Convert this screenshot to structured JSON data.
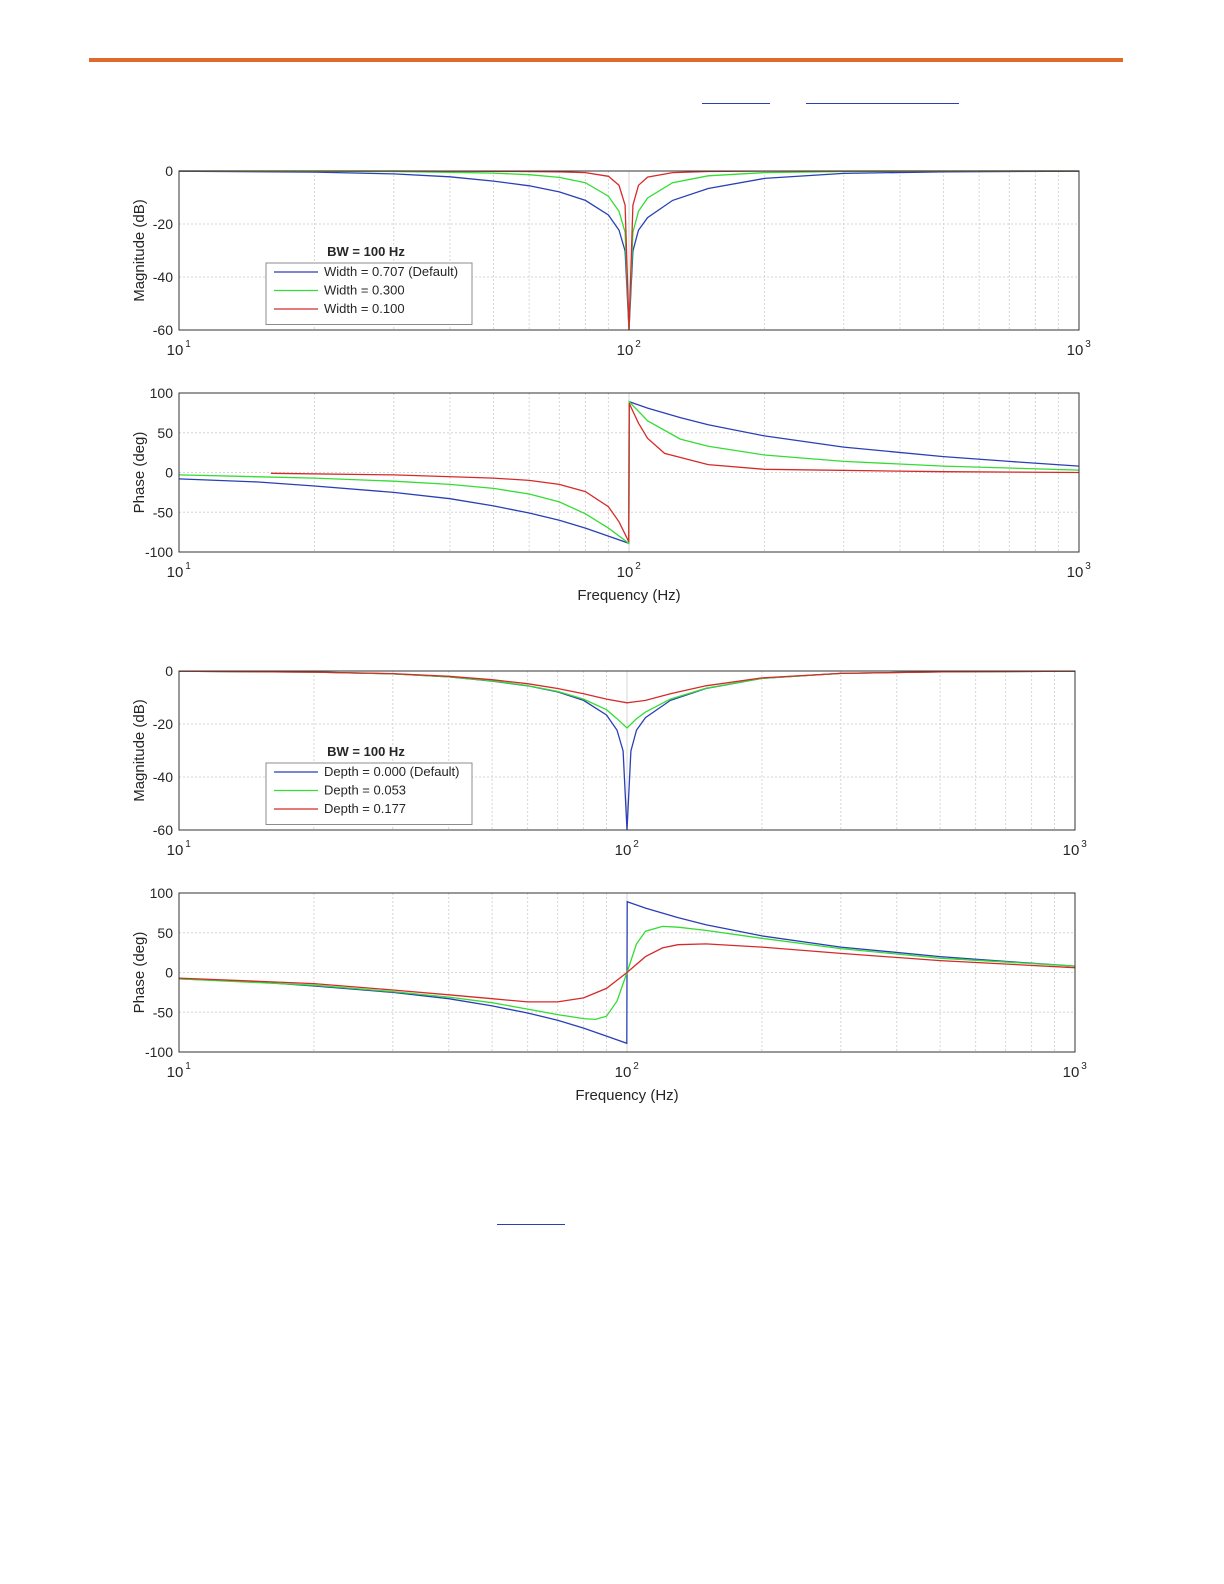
{
  "colors": {
    "accent": "#e06a2c",
    "blue": "#2a3fb6",
    "green": "#33dd33",
    "red": "#d62a2a"
  },
  "chart_data": [
    {
      "type": "line",
      "subplot": "magnitude",
      "ylabel": "Magnitude (dB)",
      "xlabel": "",
      "xscale": "log",
      "xlim": [
        10,
        1000
      ],
      "ylim": [
        -60,
        0
      ],
      "yticks": [
        "0",
        "-20",
        "-40",
        "-60"
      ],
      "grid": true,
      "legend_title": "BW = 100 Hz",
      "legend_placement": "lower-left",
      "series": [
        {
          "name": "Width = 0.707  (Default)",
          "color": "blue",
          "x": [
            10,
            20,
            30,
            40,
            50,
            60,
            70,
            80,
            90,
            95,
            98,
            100,
            102,
            105,
            110,
            125,
            150,
            200,
            300,
            500,
            1000
          ],
          "y": [
            -0.09,
            -0.4,
            -1.1,
            -2.2,
            -3.8,
            -5.6,
            -7.9,
            -11.1,
            -16.6,
            -22.3,
            -30.2,
            -60,
            -30.2,
            -22.3,
            -17.6,
            -11.1,
            -6.6,
            -2.8,
            -0.9,
            -0.3,
            -0.09
          ]
        },
        {
          "name": "Width = 0.300",
          "color": "green",
          "x": [
            10,
            20,
            30,
            40,
            50,
            60,
            70,
            80,
            90,
            95,
            98,
            100,
            102,
            105,
            110,
            125,
            150,
            200,
            300,
            500,
            1000
          ],
          "y": [
            0,
            -0.1,
            -0.2,
            -0.5,
            -0.8,
            -1.4,
            -2.4,
            -4.4,
            -9.5,
            -15.2,
            -23.1,
            -60,
            -23.1,
            -15.2,
            -10.2,
            -4.4,
            -1.8,
            -0.6,
            -0.2,
            -0.05,
            0
          ]
        },
        {
          "name": "Width = 0.100",
          "color": "red",
          "x": [
            10,
            30,
            50,
            70,
            80,
            90,
            95,
            98,
            100,
            102,
            105,
            110,
            125,
            150,
            200,
            500,
            1000
          ],
          "y": [
            0,
            0,
            -0.1,
            -0.3,
            -0.6,
            -2,
            -5.4,
            -12.9,
            -60,
            -12.9,
            -5.4,
            -2.3,
            -0.6,
            -0.2,
            -0.05,
            0,
            0
          ]
        }
      ]
    },
    {
      "type": "line",
      "subplot": "phase",
      "ylabel": "Phase (deg)",
      "xlabel": "Frequency (Hz)",
      "xscale": "log",
      "xlim": [
        10,
        1000
      ],
      "ylim": [
        -100,
        100
      ],
      "yticks": [
        "100",
        "50",
        "0",
        "-50",
        "-100"
      ],
      "grid": true,
      "series": [
        {
          "name": "Width = 0.707  (Default)",
          "color": "blue",
          "x": [
            10,
            15,
            20,
            30,
            40,
            50,
            60,
            70,
            80,
            90,
            99.9,
            100.1,
            110,
            130,
            150,
            200,
            300,
            500,
            700,
            1000
          ],
          "y": [
            -8,
            -12,
            -17,
            -25,
            -33,
            -42,
            -51,
            -60,
            -70,
            -80,
            -89,
            89,
            81,
            69,
            60,
            46,
            32,
            20,
            14,
            8
          ]
        },
        {
          "name": "Width = 0.300",
          "color": "green",
          "x": [
            10,
            20,
            30,
            40,
            50,
            60,
            70,
            80,
            90,
            99.9,
            100.1,
            110,
            130,
            150,
            200,
            300,
            500,
            1000
          ],
          "y": [
            -3,
            -7,
            -11,
            -15,
            -20,
            -27,
            -37,
            -52,
            -70,
            -89,
            89,
            65,
            42,
            33,
            22,
            14,
            8,
            3
          ]
        },
        {
          "name": "Width = 0.100",
          "color": "red",
          "x": [
            16,
            30,
            50,
            60,
            70,
            80,
            90,
            95,
            99.9,
            100.1,
            105,
            110,
            120,
            150,
            200,
            500,
            1000
          ],
          "y": [
            -1,
            -3,
            -7,
            -10,
            -15,
            -24,
            -43,
            -62,
            -87,
            87,
            62,
            43,
            24,
            10,
            4,
            1,
            0
          ]
        }
      ]
    },
    {
      "type": "line",
      "subplot": "magnitude",
      "ylabel": "Magnitude (dB)",
      "xlabel": "",
      "xscale": "log",
      "xlim": [
        10,
        1000
      ],
      "ylim": [
        -60,
        0
      ],
      "yticks": [
        "0",
        "-20",
        "-40",
        "-60"
      ],
      "grid": true,
      "legend_title": "BW = 100 Hz",
      "legend_placement": "lower-left",
      "series": [
        {
          "name": "Depth = 0.000  (Default)",
          "color": "blue",
          "x": [
            10,
            20,
            30,
            40,
            50,
            60,
            70,
            80,
            90,
            95,
            98,
            100,
            102,
            105,
            110,
            125,
            150,
            200,
            300,
            500,
            1000
          ],
          "y": [
            -0.09,
            -0.4,
            -1.1,
            -2.2,
            -3.8,
            -5.6,
            -7.9,
            -11.1,
            -16.6,
            -22.3,
            -30.2,
            -60,
            -30.2,
            -22.3,
            -17.6,
            -11.1,
            -6.6,
            -2.8,
            -0.9,
            -0.3,
            -0.09
          ]
        },
        {
          "name": "Depth = 0.053",
          "color": "green",
          "x": [
            10,
            20,
            30,
            40,
            50,
            60,
            70,
            80,
            90,
            95,
            100,
            105,
            110,
            125,
            150,
            200,
            300,
            500,
            1000
          ],
          "y": [
            -0.09,
            -0.4,
            -1.1,
            -2.2,
            -3.7,
            -5.5,
            -7.7,
            -10.6,
            -14.6,
            -18,
            -21.5,
            -18,
            -15.5,
            -10.6,
            -6.5,
            -2.8,
            -0.9,
            -0.3,
            -0.09
          ]
        },
        {
          "name": "Depth = 0.177",
          "color": "red",
          "x": [
            10,
            20,
            30,
            40,
            50,
            60,
            70,
            80,
            90,
            100,
            110,
            125,
            150,
            200,
            300,
            500,
            1000
          ],
          "y": [
            -0.08,
            -0.4,
            -1,
            -2,
            -3.3,
            -4.8,
            -6.6,
            -8.6,
            -10.6,
            -12,
            -11.1,
            -8.6,
            -5.6,
            -2.6,
            -0.9,
            -0.3,
            -0.08
          ]
        }
      ]
    },
    {
      "type": "line",
      "subplot": "phase",
      "ylabel": "Phase (deg)",
      "xlabel": "Frequency (Hz)",
      "xscale": "log",
      "xlim": [
        10,
        1000
      ],
      "ylim": [
        -100,
        100
      ],
      "yticks": [
        "100",
        "50",
        "0",
        "-50",
        "-100"
      ],
      "grid": true,
      "series": [
        {
          "name": "Depth = 0.000  (Default)",
          "color": "blue",
          "x": [
            10,
            15,
            20,
            30,
            40,
            50,
            60,
            70,
            80,
            90,
            99.9,
            100.1,
            110,
            130,
            150,
            200,
            300,
            500,
            700,
            1000
          ],
          "y": [
            -8,
            -12,
            -17,
            -25,
            -33,
            -42,
            -51,
            -60,
            -70,
            -80,
            -89,
            89,
            81,
            69,
            60,
            46,
            32,
            20,
            14,
            8
          ]
        },
        {
          "name": "Depth = 0.053",
          "color": "green",
          "x": [
            10,
            20,
            30,
            40,
            50,
            60,
            70,
            80,
            85,
            90,
            95,
            100,
            105,
            110,
            120,
            130,
            150,
            200,
            300,
            500,
            1000
          ],
          "y": [
            -8,
            -16,
            -24,
            -31,
            -38,
            -46,
            -53,
            -58,
            -59,
            -55,
            -36,
            0,
            36,
            52,
            58,
            57,
            53,
            43,
            30,
            18,
            8
          ]
        },
        {
          "name": "Depth = 0.177",
          "color": "red",
          "x": [
            10,
            20,
            30,
            40,
            50,
            60,
            70,
            80,
            90,
            100,
            110,
            120,
            130,
            150,
            200,
            300,
            500,
            1000
          ],
          "y": [
            -7,
            -14,
            -22,
            -28,
            -33,
            -37,
            -37,
            -32,
            -20,
            0,
            20,
            31,
            35,
            36,
            32,
            24,
            15,
            6
          ]
        }
      ]
    }
  ]
}
